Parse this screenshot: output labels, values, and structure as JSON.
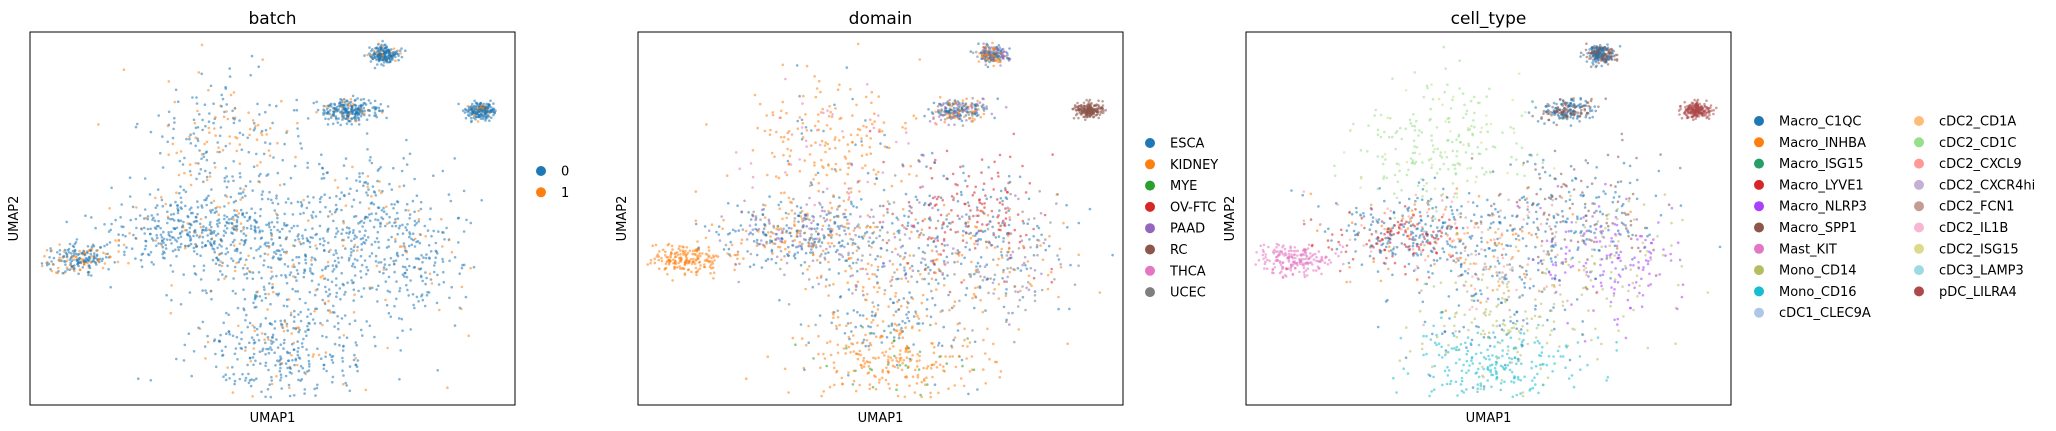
{
  "chart_data": [
    {
      "type": "scatter",
      "title": "batch",
      "xlabel": "UMAP1",
      "ylabel": "UMAP2",
      "grid": false,
      "legend_placement": "right",
      "legend": [
        {
          "label": "0",
          "color": "#1f77b4"
        },
        {
          "label": "1",
          "color": "#ff7f0e"
        }
      ]
    },
    {
      "type": "scatter",
      "title": "domain",
      "xlabel": "UMAP1",
      "ylabel": "UMAP2",
      "grid": false,
      "legend_placement": "right",
      "legend": [
        {
          "label": "ESCA",
          "color": "#1f77b4"
        },
        {
          "label": "KIDNEY",
          "color": "#ff7f0e"
        },
        {
          "label": "MYE",
          "color": "#2ca02c"
        },
        {
          "label": "OV-FTC",
          "color": "#d62728"
        },
        {
          "label": "PAAD",
          "color": "#9467bd"
        },
        {
          "label": "RC",
          "color": "#8c564b"
        },
        {
          "label": "THCA",
          "color": "#e377c2"
        },
        {
          "label": "UCEC",
          "color": "#7f7f7f"
        }
      ]
    },
    {
      "type": "scatter",
      "title": "cell_type",
      "xlabel": "UMAP1",
      "ylabel": "UMAP2",
      "grid": false,
      "legend_placement": "right",
      "legend": [
        {
          "label": "Macro_C1QC",
          "color": "#1f77b4"
        },
        {
          "label": "Macro_INHBA",
          "color": "#ff7f0e"
        },
        {
          "label": "Macro_ISG15",
          "color": "#279e68"
        },
        {
          "label": "Macro_LYVE1",
          "color": "#d62728"
        },
        {
          "label": "Macro_NLRP3",
          "color": "#aa40fc"
        },
        {
          "label": "Macro_SPP1",
          "color": "#8c564b"
        },
        {
          "label": "Mast_KIT",
          "color": "#e377c2"
        },
        {
          "label": "Mono_CD14",
          "color": "#b5bd61"
        },
        {
          "label": "Mono_CD16",
          "color": "#17becf"
        },
        {
          "label": "cDC1_CLEC9A",
          "color": "#aec7e8"
        },
        {
          "label": "cDC2_CD1A",
          "color": "#ffbb78"
        },
        {
          "label": "cDC2_CD1C",
          "color": "#98df8a"
        },
        {
          "label": "cDC2_CXCL9",
          "color": "#ff9896"
        },
        {
          "label": "cDC2_CXCR4hi",
          "color": "#c5b0d5"
        },
        {
          "label": "cDC2_FCN1",
          "color": "#c49c94"
        },
        {
          "label": "cDC2_IL1B",
          "color": "#f7b6d2"
        },
        {
          "label": "cDC2_ISG15",
          "color": "#dbdb8d"
        },
        {
          "label": "cDC3_LAMP3",
          "color": "#9edae5"
        },
        {
          "label": "pDC_LILRA4",
          "color": "#ad494a"
        }
      ]
    }
  ]
}
